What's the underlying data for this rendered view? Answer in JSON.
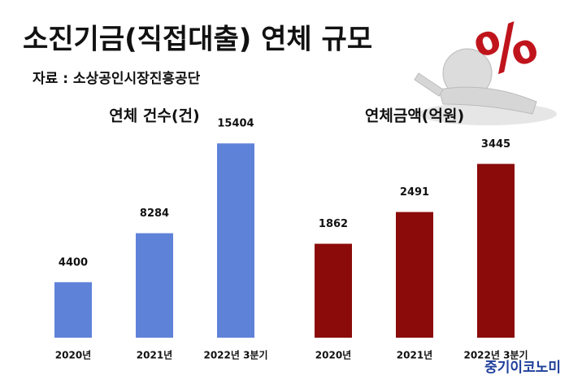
{
  "header": {
    "title": "소진기금(직접대출) 연체 규모",
    "source": "자료 : 소상공인시장진흥공단"
  },
  "footer": {
    "watermark": "중기이코노미"
  },
  "chart_data": [
    {
      "type": "bar",
      "title": "연체 건수(건)",
      "categories": [
        "2020년",
        "2021년",
        "2022년 3분기"
      ],
      "values": [
        4400,
        8284,
        15404
      ],
      "color": "#5f82d9",
      "ylim": [
        0,
        16000
      ]
    },
    {
      "type": "bar",
      "title": "연체금액(억원)",
      "categories": [
        "2020년",
        "2021년",
        "2022년 3분기"
      ],
      "values": [
        1862,
        2491,
        3445
      ],
      "color": "#8b0a0a",
      "ylim": [
        0,
        4000
      ]
    }
  ]
}
